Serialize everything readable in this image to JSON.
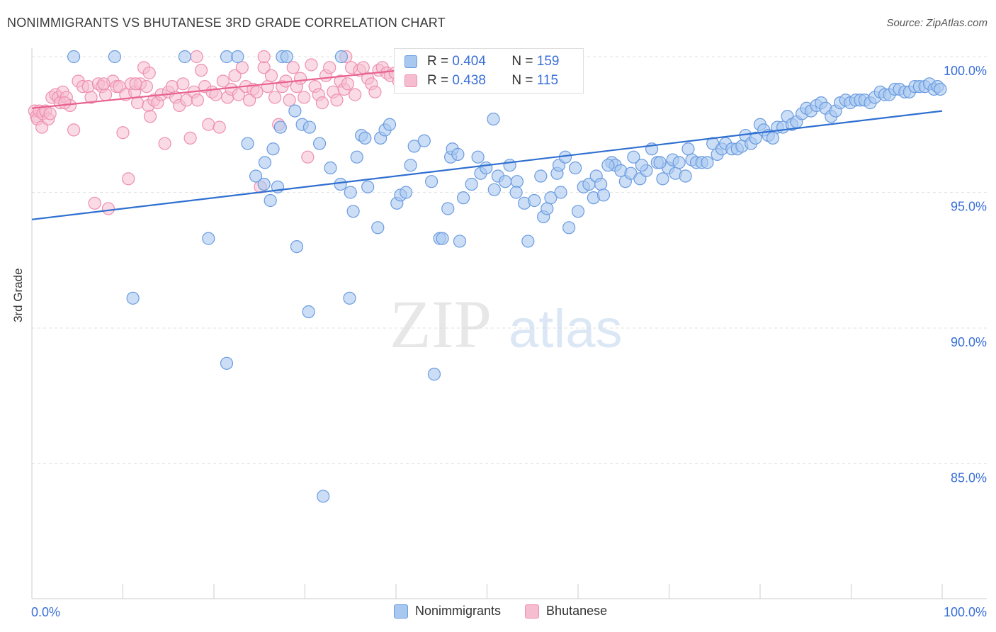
{
  "title": "NONIMMIGRANTS VS BHUTANESE 3RD GRADE CORRELATION CHART",
  "source": "Source: ZipAtlas.com",
  "watermark": {
    "zip": "ZIP",
    "atlas": "atlas"
  },
  "colors": {
    "blue_fill": "#a9c8f0",
    "blue_stroke": "#6a9be0",
    "blue_line": "#2f6fd0",
    "pink_fill": "#f6bdd0",
    "pink_stroke": "#ee8fb0",
    "pink_line": "#e8628f",
    "axis_text": "#3a6fd8",
    "grid": "#e2e2e2"
  },
  "legend": {
    "rows": [
      {
        "r_label": "R = ",
        "r_value": "0.404",
        "n_label": "N = ",
        "n_value": "159"
      },
      {
        "r_label": "R = ",
        "r_value": "0.438",
        "n_label": "N = ",
        "n_value": "115"
      }
    ]
  },
  "chart_data": {
    "type": "scatter",
    "title": "NONIMMIGRANTS VS BHUTANESE 3RD GRADE CORRELATION CHART",
    "xlabel": "",
    "ylabel": "3rd Grade",
    "xlim": [
      0,
      100
    ],
    "ylim": [
      80.5,
      100.5
    ],
    "x_tick_labels": [
      "0.0%",
      "100.0%"
    ],
    "y_ticks": [
      85,
      90,
      95,
      100
    ],
    "y_tick_labels": [
      "85.0%",
      "90.0%",
      "95.0%",
      "100.0%"
    ],
    "grid": true,
    "series": [
      {
        "name": "Nonimmigrants",
        "color": "#a9c8f0",
        "trend": {
          "x": [
            0,
            100
          ],
          "y": [
            94.0,
            98.0
          ]
        },
        "points": [
          [
            4.6,
            100.0
          ],
          [
            9.1,
            100.0
          ],
          [
            16.8,
            100.0
          ],
          [
            21.4,
            100.0
          ],
          [
            22.6,
            100.0
          ],
          [
            27.5,
            100.0
          ],
          [
            28.0,
            100.0
          ],
          [
            34.0,
            100.0
          ],
          [
            11.1,
            91.1
          ],
          [
            19.4,
            93.3
          ],
          [
            21.4,
            88.7
          ],
          [
            23.7,
            96.8
          ],
          [
            24.6,
            95.6
          ],
          [
            25.5,
            95.3
          ],
          [
            25.6,
            96.1
          ],
          [
            26.2,
            94.7
          ],
          [
            26.5,
            96.6
          ],
          [
            27.0,
            95.2
          ],
          [
            27.3,
            97.4
          ],
          [
            28.9,
            98.0
          ],
          [
            29.1,
            93.0
          ],
          [
            29.7,
            97.5
          ],
          [
            30.4,
            90.6
          ],
          [
            30.5,
            97.4
          ],
          [
            31.6,
            96.8
          ],
          [
            32.0,
            83.8
          ],
          [
            32.8,
            95.9
          ],
          [
            33.9,
            95.3
          ],
          [
            34.9,
            91.1
          ],
          [
            35.0,
            95.0
          ],
          [
            35.3,
            94.3
          ],
          [
            35.7,
            96.3
          ],
          [
            36.2,
            97.1
          ],
          [
            36.6,
            97.0
          ],
          [
            38.0,
            93.7
          ],
          [
            38.3,
            97.0
          ],
          [
            38.8,
            97.3
          ],
          [
            39.3,
            97.5
          ],
          [
            40.1,
            94.6
          ],
          [
            40.5,
            94.9
          ],
          [
            41.1,
            95.0
          ],
          [
            41.6,
            96.0
          ],
          [
            42.0,
            96.7
          ],
          [
            43.1,
            96.9
          ],
          [
            43.9,
            95.4
          ],
          [
            44.2,
            88.3
          ],
          [
            44.8,
            93.3
          ],
          [
            45.1,
            93.3
          ],
          [
            46.0,
            96.3
          ],
          [
            46.2,
            96.6
          ],
          [
            46.8,
            96.4
          ],
          [
            47.0,
            93.2
          ],
          [
            47.4,
            94.8
          ],
          [
            48.3,
            95.3
          ],
          [
            49.0,
            96.3
          ],
          [
            49.3,
            95.7
          ],
          [
            49.9,
            95.9
          ],
          [
            50.7,
            97.7
          ],
          [
            50.8,
            95.1
          ],
          [
            51.2,
            95.6
          ],
          [
            52.0,
            95.4
          ],
          [
            52.5,
            96.0
          ],
          [
            53.3,
            95.4
          ],
          [
            54.1,
            94.6
          ],
          [
            54.5,
            93.2
          ],
          [
            55.2,
            94.7
          ],
          [
            56.2,
            94.1
          ],
          [
            56.6,
            94.4
          ],
          [
            57.0,
            94.8
          ],
          [
            57.7,
            95.7
          ],
          [
            57.9,
            96.0
          ],
          [
            58.6,
            96.3
          ],
          [
            59.0,
            93.7
          ],
          [
            59.7,
            95.9
          ],
          [
            60.0,
            94.3
          ],
          [
            60.6,
            95.2
          ],
          [
            61.2,
            95.3
          ],
          [
            61.7,
            94.8
          ],
          [
            62.0,
            95.6
          ],
          [
            62.5,
            95.3
          ],
          [
            62.8,
            94.9
          ],
          [
            63.7,
            96.1
          ],
          [
            64.1,
            96.0
          ],
          [
            64.7,
            95.8
          ],
          [
            65.2,
            95.4
          ],
          [
            65.8,
            95.7
          ],
          [
            66.1,
            96.3
          ],
          [
            66.8,
            95.5
          ],
          [
            67.5,
            95.8
          ],
          [
            68.1,
            96.6
          ],
          [
            68.7,
            96.1
          ],
          [
            69.3,
            95.5
          ],
          [
            69.9,
            95.9
          ],
          [
            70.4,
            96.2
          ],
          [
            70.7,
            95.7
          ],
          [
            71.1,
            96.1
          ],
          [
            71.8,
            95.6
          ],
          [
            72.5,
            96.2
          ],
          [
            73.0,
            96.1
          ],
          [
            73.6,
            96.1
          ],
          [
            74.2,
            96.1
          ],
          [
            74.8,
            96.8
          ],
          [
            75.3,
            96.4
          ],
          [
            75.8,
            96.6
          ],
          [
            76.2,
            96.8
          ],
          [
            76.9,
            96.6
          ],
          [
            77.5,
            96.6
          ],
          [
            78.0,
            96.7
          ],
          [
            78.4,
            97.1
          ],
          [
            79.0,
            96.8
          ],
          [
            79.5,
            97.0
          ],
          [
            80.0,
            97.5
          ],
          [
            80.4,
            97.3
          ],
          [
            80.9,
            97.1
          ],
          [
            81.4,
            97.0
          ],
          [
            81.9,
            97.4
          ],
          [
            82.5,
            97.4
          ],
          [
            83.0,
            97.8
          ],
          [
            83.5,
            97.5
          ],
          [
            84.0,
            97.6
          ],
          [
            84.6,
            97.9
          ],
          [
            85.1,
            98.1
          ],
          [
            85.6,
            98.0
          ],
          [
            86.2,
            98.2
          ],
          [
            86.7,
            98.3
          ],
          [
            87.2,
            98.1
          ],
          [
            87.8,
            97.8
          ],
          [
            88.3,
            98.0
          ],
          [
            88.8,
            98.3
          ],
          [
            89.4,
            98.4
          ],
          [
            89.9,
            98.3
          ],
          [
            90.5,
            98.4
          ],
          [
            91.0,
            98.4
          ],
          [
            91.5,
            98.4
          ],
          [
            92.1,
            98.3
          ],
          [
            92.6,
            98.5
          ],
          [
            93.2,
            98.7
          ],
          [
            93.7,
            98.6
          ],
          [
            94.2,
            98.6
          ],
          [
            94.8,
            98.8
          ],
          [
            95.3,
            98.8
          ],
          [
            95.9,
            98.7
          ],
          [
            96.4,
            98.7
          ],
          [
            97.0,
            98.9
          ],
          [
            97.5,
            98.9
          ],
          [
            98.1,
            98.9
          ],
          [
            98.6,
            99.0
          ],
          [
            99.1,
            98.8
          ],
          [
            99.5,
            98.9
          ],
          [
            99.8,
            98.8
          ],
          [
            45.7,
            94.4
          ],
          [
            53.2,
            95.0
          ],
          [
            55.9,
            95.6
          ],
          [
            58.1,
            95.0
          ],
          [
            63.3,
            96.0
          ],
          [
            67.0,
            96.0
          ],
          [
            72.1,
            96.6
          ],
          [
            69.0,
            96.1
          ],
          [
            36.9,
            95.2
          ]
        ]
      },
      {
        "name": "Bhutanese",
        "color": "#f6bdd0",
        "trend": {
          "x": [
            0,
            40.5
          ],
          "y": [
            98.1,
            99.5
          ]
        },
        "points": [
          [
            0.3,
            98.0
          ],
          [
            0.5,
            97.8
          ],
          [
            0.6,
            97.7
          ],
          [
            0.8,
            98.0
          ],
          [
            1.1,
            97.4
          ],
          [
            1.2,
            97.9
          ],
          [
            1.5,
            98.0
          ],
          [
            1.8,
            97.7
          ],
          [
            2.2,
            98.5
          ],
          [
            2.6,
            98.6
          ],
          [
            2.9,
            98.5
          ],
          [
            3.1,
            98.3
          ],
          [
            3.4,
            98.7
          ],
          [
            3.8,
            98.5
          ],
          [
            4.2,
            98.2
          ],
          [
            4.6,
            97.3
          ],
          [
            5.1,
            99.1
          ],
          [
            5.6,
            98.9
          ],
          [
            6.2,
            98.9
          ],
          [
            6.5,
            98.5
          ],
          [
            6.9,
            94.6
          ],
          [
            7.3,
            99.0
          ],
          [
            7.7,
            98.9
          ],
          [
            8.1,
            98.6
          ],
          [
            8.4,
            94.4
          ],
          [
            8.9,
            99.1
          ],
          [
            9.3,
            98.9
          ],
          [
            9.6,
            98.9
          ],
          [
            10.0,
            97.2
          ],
          [
            10.3,
            98.6
          ],
          [
            10.6,
            95.5
          ],
          [
            10.9,
            99.0
          ],
          [
            11.3,
            98.7
          ],
          [
            11.6,
            98.3
          ],
          [
            11.9,
            99.0
          ],
          [
            12.3,
            99.6
          ],
          [
            12.6,
            98.9
          ],
          [
            12.8,
            98.2
          ],
          [
            13.0,
            97.8
          ],
          [
            13.4,
            98.4
          ],
          [
            13.8,
            98.3
          ],
          [
            14.2,
            98.6
          ],
          [
            14.6,
            96.8
          ],
          [
            15.0,
            98.7
          ],
          [
            15.4,
            98.9
          ],
          [
            15.8,
            98.5
          ],
          [
            16.2,
            98.2
          ],
          [
            16.6,
            99.0
          ],
          [
            17.0,
            98.4
          ],
          [
            17.4,
            97.0
          ],
          [
            17.8,
            98.7
          ],
          [
            18.2,
            98.4
          ],
          [
            18.6,
            99.5
          ],
          [
            19.0,
            98.9
          ],
          [
            19.4,
            97.5
          ],
          [
            19.8,
            98.7
          ],
          [
            20.2,
            98.6
          ],
          [
            20.6,
            97.4
          ],
          [
            21.0,
            99.1
          ],
          [
            21.5,
            98.5
          ],
          [
            21.9,
            98.8
          ],
          [
            22.3,
            99.3
          ],
          [
            22.7,
            98.6
          ],
          [
            23.1,
            99.6
          ],
          [
            23.5,
            98.9
          ],
          [
            23.9,
            98.4
          ],
          [
            24.3,
            98.8
          ],
          [
            24.7,
            98.7
          ],
          [
            25.1,
            95.2
          ],
          [
            25.5,
            99.6
          ],
          [
            25.9,
            98.9
          ],
          [
            26.3,
            99.3
          ],
          [
            26.7,
            98.5
          ],
          [
            27.1,
            97.5
          ],
          [
            27.5,
            98.9
          ],
          [
            27.9,
            99.1
          ],
          [
            28.3,
            98.4
          ],
          [
            28.7,
            99.6
          ],
          [
            29.1,
            98.9
          ],
          [
            29.5,
            99.2
          ],
          [
            29.9,
            98.5
          ],
          [
            30.3,
            96.3
          ],
          [
            30.7,
            99.7
          ],
          [
            31.1,
            98.9
          ],
          [
            31.5,
            98.6
          ],
          [
            31.9,
            98.3
          ],
          [
            32.3,
            99.3
          ],
          [
            32.7,
            99.6
          ],
          [
            33.1,
            98.7
          ],
          [
            33.5,
            98.4
          ],
          [
            33.9,
            99.1
          ],
          [
            34.3,
            98.8
          ],
          [
            34.7,
            99.0
          ],
          [
            35.1,
            99.6
          ],
          [
            35.5,
            98.6
          ],
          [
            36.0,
            99.5
          ],
          [
            36.4,
            99.6
          ],
          [
            36.9,
            99.2
          ],
          [
            37.3,
            99.0
          ],
          [
            37.7,
            98.7
          ],
          [
            38.1,
            99.5
          ],
          [
            38.5,
            99.6
          ],
          [
            39.0,
            99.4
          ],
          [
            39.4,
            99.3
          ],
          [
            39.9,
            99.4
          ],
          [
            40.3,
            99.1
          ],
          [
            7.9,
            99.0
          ],
          [
            12.9,
            99.4
          ],
          [
            18.1,
            100.0
          ],
          [
            25.5,
            100.0
          ],
          [
            34.5,
            100.0
          ],
          [
            41.8,
            100.0
          ],
          [
            2.0,
            97.9
          ],
          [
            3.6,
            98.3
          ],
          [
            11.4,
            99.0
          ]
        ]
      }
    ]
  },
  "axis": {
    "ylabel": "3rd Grade",
    "x_min_label": "0.0%",
    "x_max_label": "100.0%"
  },
  "bottom_legend": [
    {
      "label": "Nonimmigrants"
    },
    {
      "label": "Bhutanese"
    }
  ]
}
